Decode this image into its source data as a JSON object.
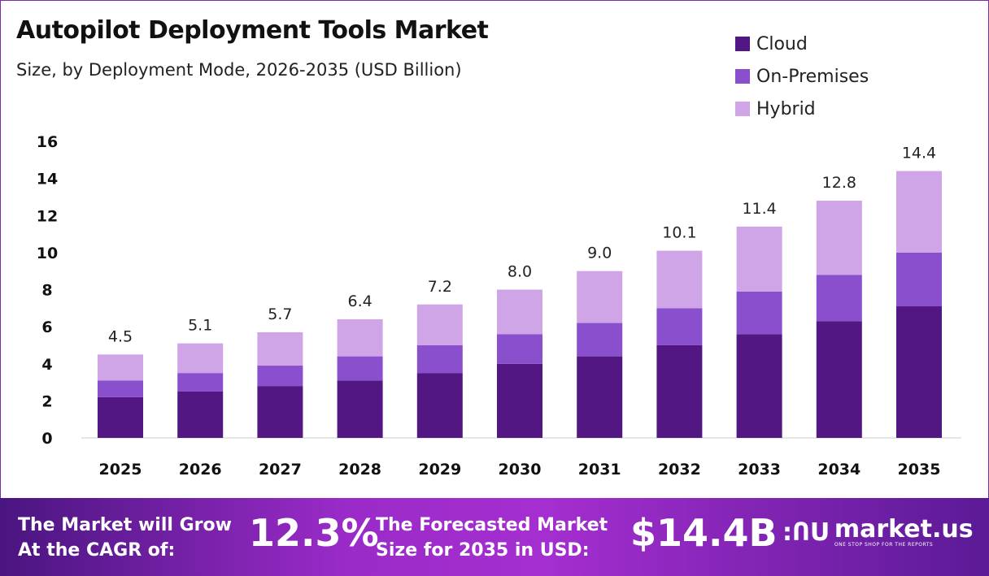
{
  "chart_data": {
    "type": "bar",
    "stacked": true,
    "title": "Autopilot Deployment Tools Market",
    "subtitle": "Size, by Deployment Mode, 2026-2035 (USD Billion)",
    "categories": [
      "2025",
      "2026",
      "2027",
      "2028",
      "2029",
      "2030",
      "2031",
      "2032",
      "2033",
      "2034",
      "2035"
    ],
    "series": [
      {
        "name": "Cloud",
        "color": "#521782",
        "values": [
          2.2,
          2.5,
          2.8,
          3.1,
          3.5,
          4.0,
          4.4,
          5.0,
          5.6,
          6.3,
          7.1
        ]
      },
      {
        "name": "On-Premises",
        "color": "#8a4fcc",
        "values": [
          0.9,
          1.0,
          1.1,
          1.3,
          1.5,
          1.6,
          1.8,
          2.0,
          2.3,
          2.5,
          2.9
        ]
      },
      {
        "name": "Hybrid",
        "color": "#cfa5e8",
        "values": [
          1.4,
          1.6,
          1.8,
          2.0,
          2.2,
          2.4,
          2.8,
          3.1,
          3.5,
          4.0,
          4.4
        ]
      }
    ],
    "totals": [
      "4.5",
      "5.1",
      "5.7",
      "6.4",
      "7.2",
      "8.0",
      "9.0",
      "10.1",
      "11.4",
      "12.8",
      "14.4"
    ],
    "yticks": [
      "0",
      "2",
      "4",
      "6",
      "8",
      "10",
      "12",
      "14",
      "16"
    ],
    "ylim": [
      0,
      16
    ],
    "grid": false,
    "legend": "top-right"
  },
  "banner": {
    "cagr_label_1": "The Market will Grow",
    "cagr_label_2": "At the CAGR of:",
    "cagr_value": "12.3%",
    "forecast_label_1": "The Forecasted Market",
    "forecast_label_2": "Size for 2035 in USD:",
    "forecast_value": "$14.4B",
    "logo_text": "market.us",
    "logo_tagline": "ONE STOP SHOP FOR THE REPORTS"
  }
}
